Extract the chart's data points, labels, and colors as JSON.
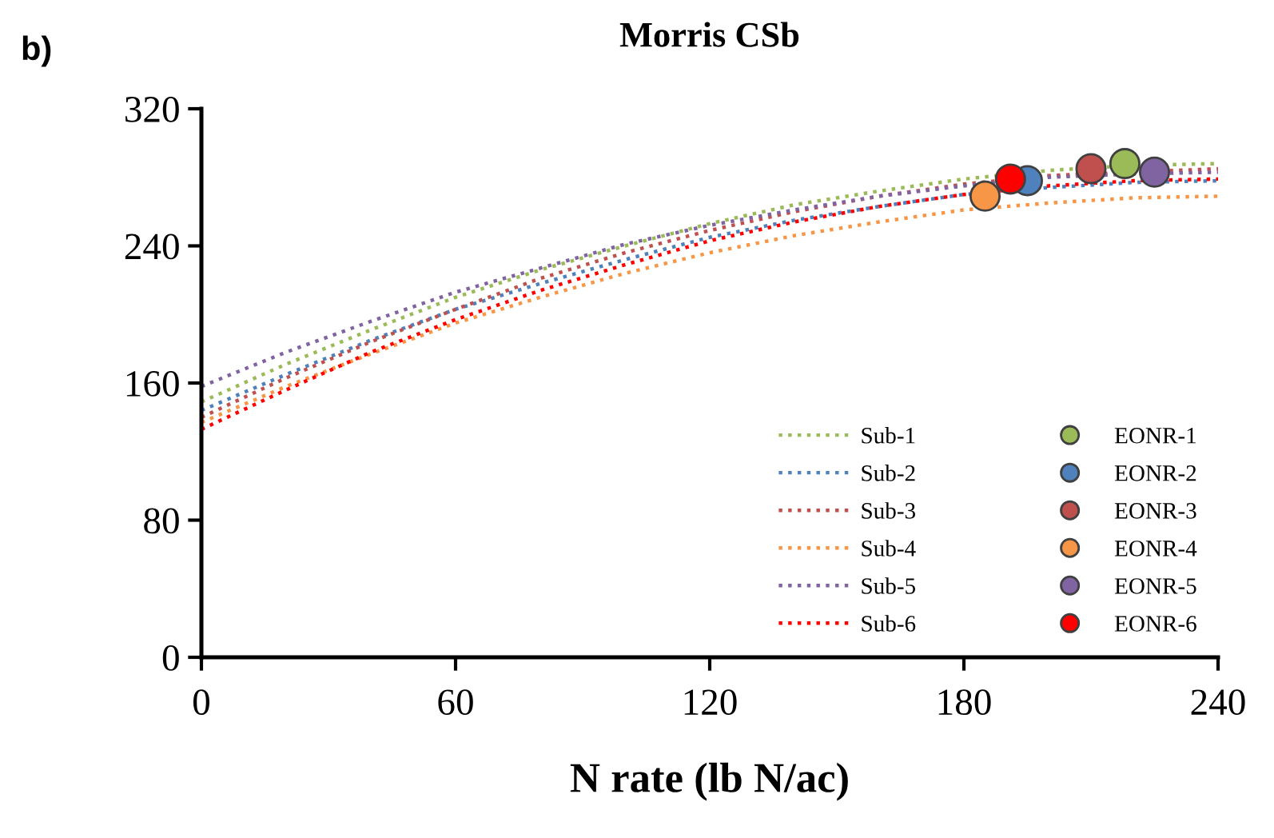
{
  "chart_data": {
    "type": "line",
    "title": "Morris CSb",
    "xlabel": "N rate (lb N/ac)",
    "annotations": [
      "b)"
    ],
    "xlim": [
      0,
      240
    ],
    "xticks": [
      0,
      60,
      120,
      180,
      240
    ],
    "ylim": [
      0,
      320
    ],
    "yticks": [
      0,
      80,
      160,
      240,
      320
    ],
    "grid": false,
    "legend": "bottom right",
    "series": [
      {
        "name": "Sub-1",
        "line_style": "dotted",
        "marker": "none",
        "color": "#9bbb59",
        "x": [
          0,
          20,
          40,
          60,
          80,
          100,
          120,
          140,
          160,
          180,
          200,
          220,
          240
        ],
        "values": [
          149,
          171,
          191,
          210,
          226,
          240,
          253,
          264,
          272,
          279,
          284,
          287,
          288
        ]
      },
      {
        "name": "Sub-2",
        "line_style": "dotted",
        "marker": "none",
        "color": "#4f81bd",
        "x": [
          0,
          20,
          40,
          60,
          80,
          100,
          120,
          140,
          160,
          180,
          200,
          220,
          240
        ],
        "values": [
          144,
          165,
          185,
          203,
          218,
          232,
          245,
          255,
          263,
          270,
          274,
          277,
          278
        ]
      },
      {
        "name": "Sub-3",
        "line_style": "dotted",
        "marker": "none",
        "color": "#c0504d",
        "x": [
          0,
          20,
          40,
          60,
          80,
          100,
          120,
          140,
          160,
          180,
          200,
          240
        ],
        "values": [
          140,
          163,
          184,
          203,
          221,
          236,
          249,
          260,
          269,
          276,
          281,
          285
        ]
      },
      {
        "name": "Sub-4",
        "line_style": "dotted",
        "marker": "none",
        "color": "#f79646",
        "x": [
          0,
          20,
          40,
          60,
          80,
          100,
          120,
          140,
          160,
          180,
          200,
          220,
          240
        ],
        "values": [
          137,
          158,
          177,
          195,
          210,
          224,
          236,
          246,
          254,
          261,
          265,
          268,
          269
        ]
      },
      {
        "name": "Sub-5",
        "line_style": "dotted",
        "marker": "none",
        "color": "#8064a2",
        "x": [
          0,
          20,
          40,
          60,
          80,
          100,
          120,
          140,
          160,
          180,
          200,
          220,
          240
        ],
        "values": [
          158,
          178,
          196,
          213,
          227,
          241,
          252,
          261,
          269,
          275,
          280,
          282,
          283
        ]
      },
      {
        "name": "Sub-6",
        "line_style": "dotted",
        "marker": "none",
        "color": "#ff0000",
        "x": [
          0,
          20,
          40,
          60,
          80,
          100,
          120,
          140,
          160,
          180,
          200,
          220,
          240
        ],
        "values": [
          133,
          156,
          178,
          197,
          214,
          229,
          243,
          254,
          263,
          270,
          275,
          278,
          279
        ]
      },
      {
        "name": "EONR-1",
        "type": "scatter",
        "marker": "circle",
        "color": "#9bbb59",
        "x": [
          218
        ],
        "values": [
          288
        ]
      },
      {
        "name": "EONR-2",
        "type": "scatter",
        "marker": "circle",
        "color": "#4f81bd",
        "x": [
          195
        ],
        "values": [
          278
        ]
      },
      {
        "name": "EONR-3",
        "type": "scatter",
        "marker": "circle",
        "color": "#c0504d",
        "x": [
          210
        ],
        "values": [
          285
        ]
      },
      {
        "name": "EONR-4",
        "type": "scatter",
        "marker": "circle",
        "color": "#f79646",
        "x": [
          185
        ],
        "values": [
          269
        ]
      },
      {
        "name": "EONR-5",
        "type": "scatter",
        "marker": "circle",
        "color": "#8064a2",
        "x": [
          225
        ],
        "values": [
          283
        ]
      },
      {
        "name": "EONR-6",
        "type": "scatter",
        "marker": "circle",
        "color": "#ff0000",
        "x": [
          191
        ],
        "values": [
          279
        ]
      }
    ]
  }
}
